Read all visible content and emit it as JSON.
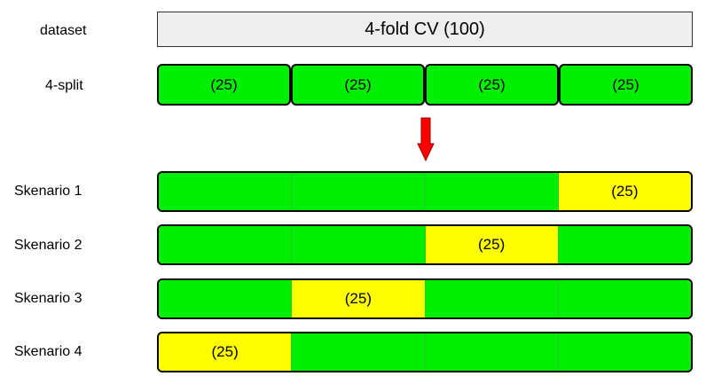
{
  "labels": {
    "dataset": "dataset",
    "split": "4-split"
  },
  "dataset_box": "4-fold CV (100)",
  "splits": [
    "(25)",
    "(25)",
    "(25)",
    "(25)"
  ],
  "scenarios": [
    {
      "label": "Skenario 1",
      "test_fold": 4,
      "test_text": "(25)"
    },
    {
      "label": "Skenario 2",
      "test_fold": 3,
      "test_text": "(25)"
    },
    {
      "label": "Skenario 3",
      "test_fold": 2,
      "test_text": "(25)"
    },
    {
      "label": "Skenario 4",
      "test_fold": 1,
      "test_text": "(25)"
    }
  ],
  "colors": {
    "train": "#00ee00",
    "test": "#ffff00",
    "dataset_fill": "#eeeeee",
    "arrow": "#ff0000"
  }
}
